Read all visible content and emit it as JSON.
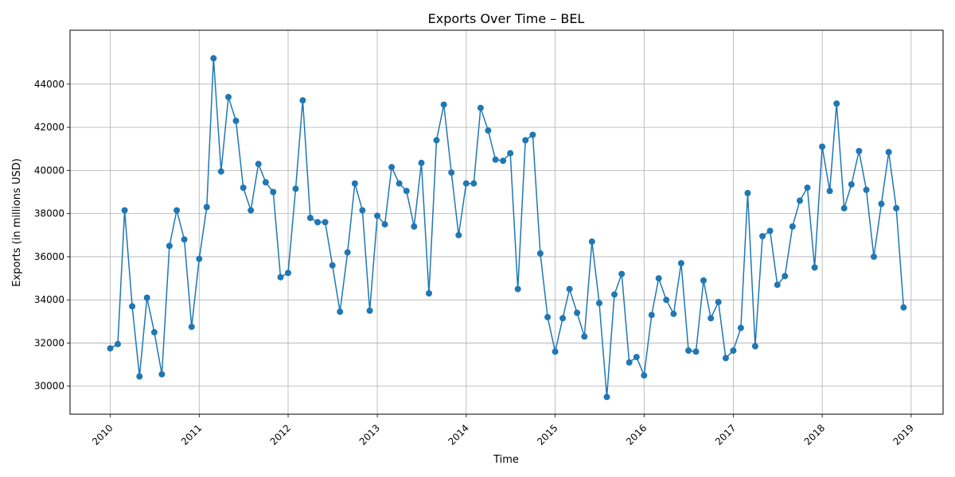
{
  "chart_data": {
    "type": "line",
    "title": "Exports Over Time – BEL",
    "xlabel": "Time",
    "ylabel": "Exports (in millions USD)",
    "xlim": [
      "2009-07-20",
      "2019-05-12"
    ],
    "ylim": [
      28700,
      46500
    ],
    "grid": true,
    "x_ticks": [
      "2010",
      "2011",
      "2012",
      "2013",
      "2014",
      "2015",
      "2016",
      "2017",
      "2018",
      "2019"
    ],
    "y_ticks": [
      30000,
      32000,
      34000,
      36000,
      38000,
      40000,
      42000,
      44000
    ],
    "series_color": "#1f77b4",
    "series": [
      {
        "x": [
          "2010-01",
          "2010-02",
          "2010-03",
          "2010-04",
          "2010-05",
          "2010-06",
          "2010-07",
          "2010-08",
          "2010-09",
          "2010-10",
          "2010-11",
          "2010-12",
          "2011-01",
          "2011-02",
          "2011-03",
          "2011-04",
          "2011-05",
          "2011-06",
          "2011-07",
          "2011-08",
          "2011-09",
          "2011-10",
          "2011-11",
          "2011-12",
          "2012-01",
          "2012-02",
          "2012-03",
          "2012-04",
          "2012-05",
          "2012-06",
          "2012-07",
          "2012-08",
          "2012-09",
          "2012-10",
          "2012-11",
          "2012-12",
          "2013-01",
          "2013-02",
          "2013-03",
          "2013-04",
          "2013-05",
          "2013-06",
          "2013-07",
          "2013-08",
          "2013-09",
          "2013-10",
          "2013-11",
          "2013-12",
          "2014-01",
          "2014-02",
          "2014-03",
          "2014-04",
          "2014-05",
          "2014-06",
          "2014-07",
          "2014-08",
          "2014-09",
          "2014-10",
          "2014-11",
          "2014-12",
          "2015-01",
          "2015-02",
          "2015-03",
          "2015-04",
          "2015-05",
          "2015-06",
          "2015-07",
          "2015-08",
          "2015-09",
          "2015-10",
          "2015-11",
          "2015-12",
          "2016-01",
          "2016-02",
          "2016-03",
          "2016-04",
          "2016-05",
          "2016-06",
          "2016-07",
          "2016-08",
          "2016-09",
          "2016-10",
          "2016-11",
          "2016-12",
          "2017-01",
          "2017-02",
          "2017-03",
          "2017-04",
          "2017-05",
          "2017-06",
          "2017-07",
          "2017-08",
          "2017-09",
          "2017-10",
          "2017-11",
          "2017-12",
          "2018-01",
          "2018-02",
          "2018-03",
          "2018-04",
          "2018-05",
          "2018-06",
          "2018-07",
          "2018-08",
          "2018-09",
          "2018-10",
          "2018-11",
          "2018-12"
        ],
        "y": [
          31750,
          31950,
          38150,
          33700,
          30450,
          34100,
          32500,
          30550,
          36500,
          38150,
          36800,
          32750,
          35900,
          38300,
          45200,
          39950,
          43400,
          42300,
          39200,
          38150,
          40300,
          39450,
          39000,
          35050,
          35250,
          39150,
          43250,
          37800,
          37600,
          37600,
          35600,
          33450,
          36200,
          39400,
          38150,
          33500,
          37900,
          37500,
          40150,
          39400,
          39050,
          37400,
          40350,
          34300,
          41400,
          43050,
          39900,
          37000,
          39400,
          39400,
          42900,
          41850,
          40500,
          40450,
          40800,
          34500,
          41400,
          41650,
          36150,
          33200,
          31600,
          33150,
          34500,
          33400,
          32300,
          36700,
          33850,
          29500,
          34250,
          35200,
          31100,
          31350,
          30500,
          33300,
          35000,
          34000,
          33350,
          35700,
          31650,
          31600,
          34900,
          33150,
          33900,
          31300,
          31650,
          32700,
          38950,
          31850,
          36950,
          37200,
          34700,
          35100,
          37400,
          38600,
          39200,
          35500,
          41100,
          39050,
          43100,
          38250,
          39350,
          40900,
          39100,
          36000,
          38450,
          40850,
          38250,
          33650
        ]
      }
    ]
  }
}
